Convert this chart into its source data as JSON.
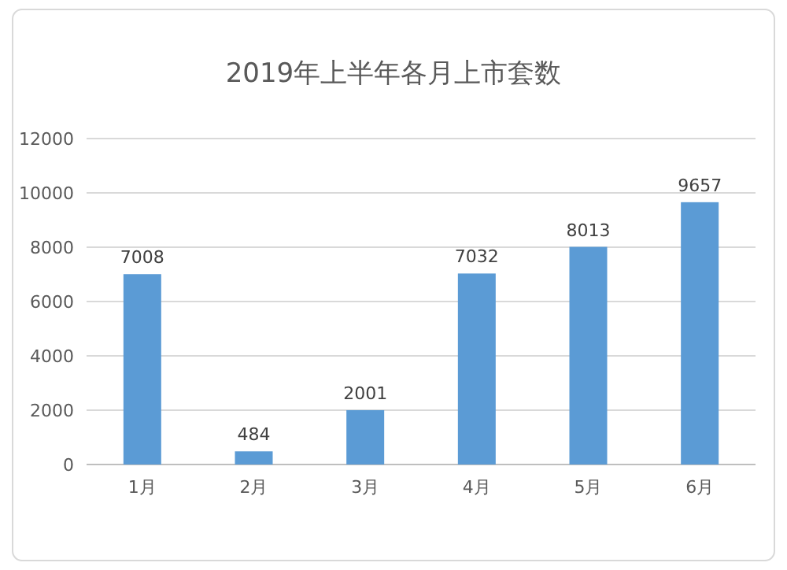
{
  "chart_data": {
    "type": "bar",
    "title": "2019年上半年各月上市套数",
    "categories": [
      "1月",
      "2月",
      "3月",
      "4月",
      "5月",
      "6月"
    ],
    "values": [
      7008,
      484,
      2001,
      7032,
      8013,
      9657
    ],
    "color": "#5b9bd5",
    "ylim": [
      0,
      12000
    ],
    "yticks": [
      0,
      2000,
      4000,
      6000,
      8000,
      10000,
      12000
    ],
    "grid": "y",
    "data_labels": true
  }
}
